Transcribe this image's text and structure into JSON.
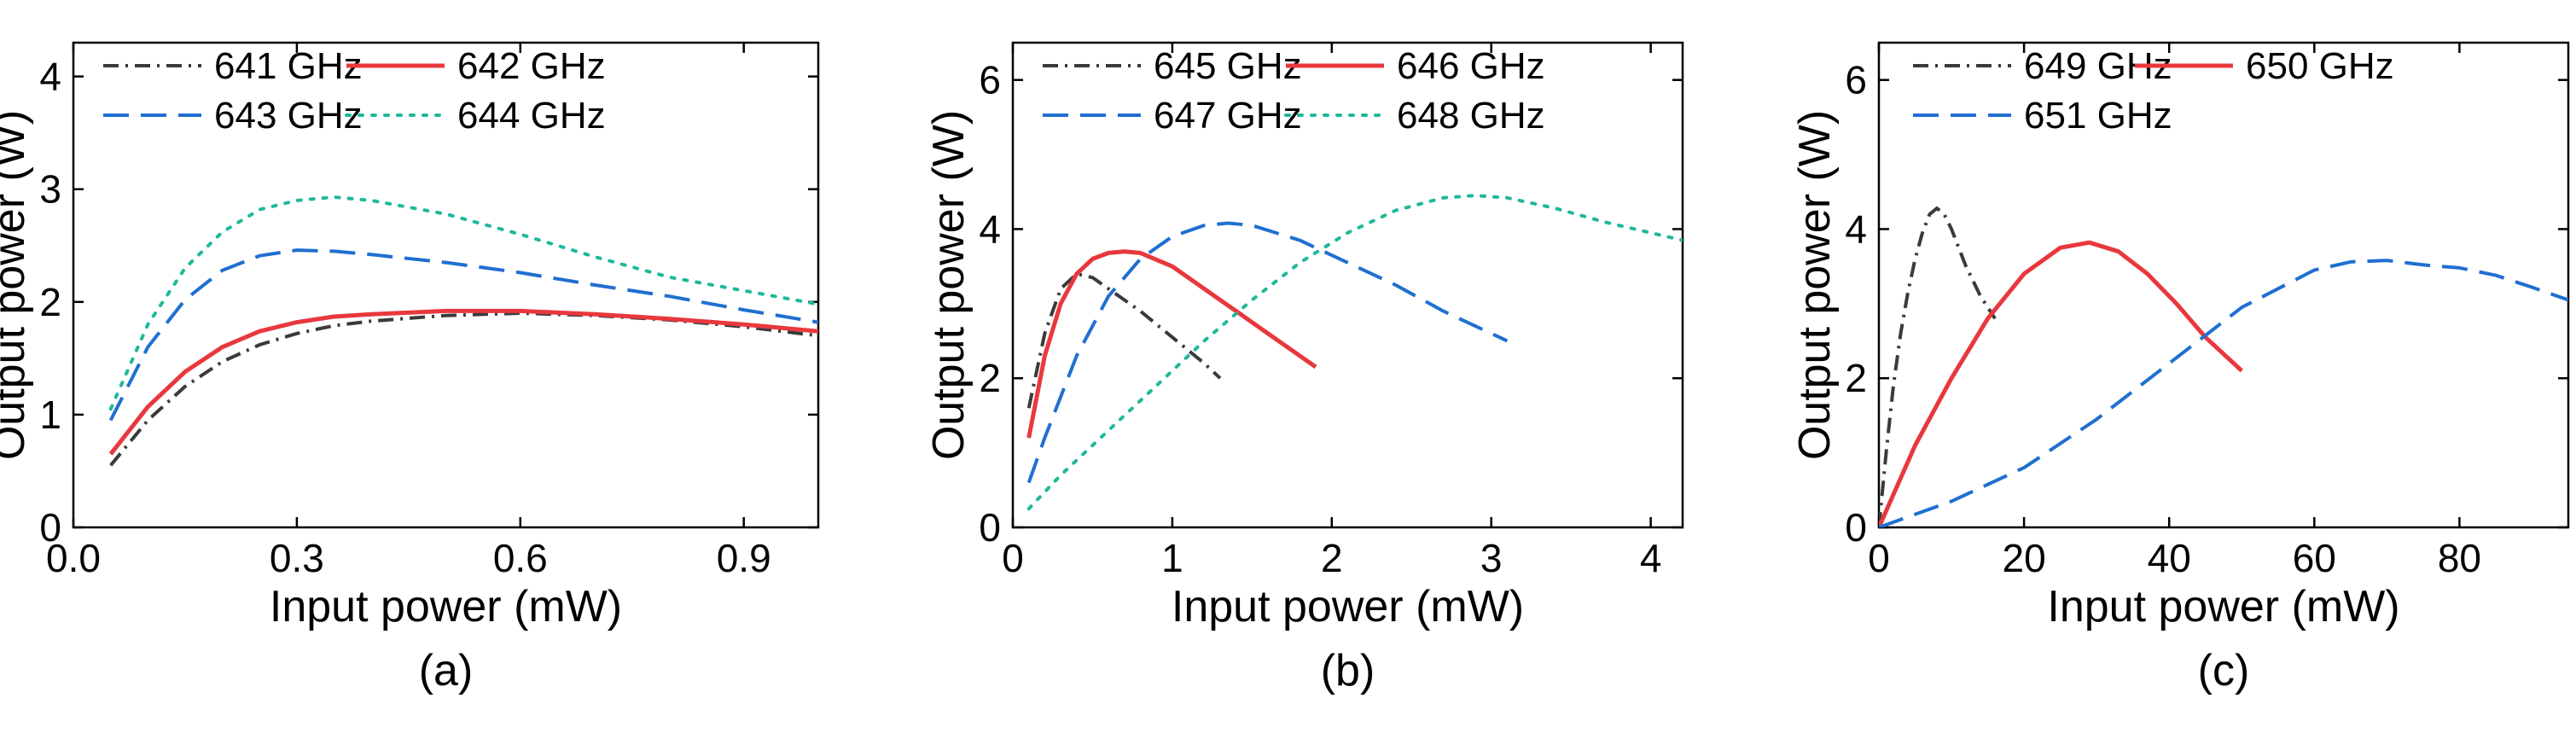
{
  "chart_data": [
    {
      "type": "line",
      "panel_label": "(a)",
      "xlabel": "Input power (mW)",
      "ylabel": "Output power (W)",
      "xlim": [
        0.0,
        1.0
      ],
      "ylim": [
        0,
        4.3
      ],
      "xticks": [
        0.0,
        0.3,
        0.6,
        0.9
      ],
      "xtick_labels": [
        "0.0",
        "0.3",
        "0.6",
        "0.9"
      ],
      "yticks": [
        0,
        1,
        2,
        3,
        4
      ],
      "ytick_labels": [
        "0",
        "1",
        "2",
        "3",
        "4"
      ],
      "legend_position": "top",
      "series": [
        {
          "name": "641 GHz",
          "style": "dashdot",
          "color": "#3a3a3a",
          "x": [
            0.05,
            0.1,
            0.15,
            0.2,
            0.25,
            0.3,
            0.35,
            0.4,
            0.5,
            0.6,
            0.7,
            0.8,
            0.9,
            1.0
          ],
          "y": [
            0.55,
            0.95,
            1.25,
            1.47,
            1.62,
            1.72,
            1.79,
            1.83,
            1.88,
            1.9,
            1.88,
            1.84,
            1.78,
            1.7
          ]
        },
        {
          "name": "642 GHz",
          "style": "solid",
          "color": "#e8383d",
          "x": [
            0.05,
            0.1,
            0.15,
            0.2,
            0.25,
            0.3,
            0.35,
            0.4,
            0.5,
            0.6,
            0.7,
            0.8,
            0.9,
            1.0
          ],
          "y": [
            0.65,
            1.07,
            1.38,
            1.6,
            1.74,
            1.82,
            1.87,
            1.89,
            1.92,
            1.92,
            1.89,
            1.85,
            1.8,
            1.74
          ]
        },
        {
          "name": "643 GHz",
          "style": "dashed",
          "color": "#1f6fd1",
          "x": [
            0.05,
            0.1,
            0.15,
            0.2,
            0.25,
            0.3,
            0.35,
            0.4,
            0.5,
            0.6,
            0.7,
            0.8,
            0.9,
            1.0
          ],
          "y": [
            0.95,
            1.6,
            2.02,
            2.28,
            2.41,
            2.46,
            2.45,
            2.42,
            2.35,
            2.26,
            2.15,
            2.05,
            1.93,
            1.82
          ]
        },
        {
          "name": "644 GHz",
          "style": "dotted",
          "color": "#1fb89a",
          "x": [
            0.05,
            0.1,
            0.15,
            0.2,
            0.25,
            0.3,
            0.35,
            0.4,
            0.5,
            0.6,
            0.7,
            0.8,
            0.9,
            1.0
          ],
          "y": [
            1.05,
            1.8,
            2.3,
            2.62,
            2.82,
            2.9,
            2.93,
            2.9,
            2.78,
            2.6,
            2.4,
            2.22,
            2.1,
            1.98
          ]
        }
      ]
    },
    {
      "type": "line",
      "panel_label": "(b)",
      "xlabel": "Input power (mW)",
      "ylabel": "Output power (W)",
      "xlim": [
        0,
        4.2
      ],
      "ylim": [
        0,
        6.5
      ],
      "xticks": [
        0,
        1,
        2,
        3,
        4
      ],
      "xtick_labels": [
        "0",
        "1",
        "2",
        "3",
        "4"
      ],
      "yticks": [
        0,
        2,
        4,
        6
      ],
      "ytick_labels": [
        "0",
        "2",
        "4",
        "6"
      ],
      "legend_position": "top",
      "series": [
        {
          "name": "645 GHz",
          "style": "dashdot",
          "color": "#3a3a3a",
          "x": [
            0.1,
            0.2,
            0.3,
            0.4,
            0.5,
            0.6,
            0.8,
            1.0,
            1.2,
            1.3
          ],
          "y": [
            1.6,
            2.6,
            3.2,
            3.4,
            3.35,
            3.2,
            2.9,
            2.55,
            2.2,
            2.0
          ]
        },
        {
          "name": "646 GHz",
          "style": "solid",
          "color": "#e8383d",
          "x": [
            0.1,
            0.2,
            0.3,
            0.4,
            0.5,
            0.6,
            0.7,
            0.8,
            1.0,
            1.2,
            1.4,
            1.6,
            1.8,
            1.9
          ],
          "y": [
            1.2,
            2.3,
            3.0,
            3.4,
            3.6,
            3.68,
            3.7,
            3.68,
            3.5,
            3.2,
            2.9,
            2.6,
            2.3,
            2.15
          ]
        },
        {
          "name": "647 GHz",
          "style": "dashed",
          "color": "#1f6fd1",
          "x": [
            0.1,
            0.2,
            0.4,
            0.6,
            0.8,
            1.0,
            1.2,
            1.35,
            1.5,
            1.8,
            2.1,
            2.4,
            2.7,
            3.0,
            3.1
          ],
          "y": [
            0.6,
            1.2,
            2.3,
            3.1,
            3.6,
            3.9,
            4.05,
            4.08,
            4.05,
            3.85,
            3.55,
            3.25,
            2.9,
            2.6,
            2.5
          ]
        },
        {
          "name": "648 GHz",
          "style": "dotted",
          "color": "#1fb89a",
          "x": [
            0.1,
            0.3,
            0.6,
            0.9,
            1.2,
            1.5,
            1.8,
            2.1,
            2.4,
            2.7,
            2.9,
            3.1,
            3.4,
            3.7,
            4.0,
            4.2
          ],
          "y": [
            0.25,
            0.7,
            1.3,
            1.9,
            2.5,
            3.05,
            3.55,
            3.95,
            4.25,
            4.42,
            4.45,
            4.42,
            4.28,
            4.1,
            3.95,
            3.85
          ]
        }
      ]
    },
    {
      "type": "line",
      "panel_label": "(c)",
      "xlabel": "Input power (mW)",
      "ylabel": "Output power (W)",
      "xlim": [
        0,
        95
      ],
      "ylim": [
        0,
        6.5
      ],
      "xticks": [
        0,
        20,
        40,
        60,
        80
      ],
      "xtick_labels": [
        "0",
        "20",
        "40",
        "60",
        "80"
      ],
      "yticks": [
        0,
        2,
        4,
        6
      ],
      "ytick_labels": [
        "0",
        "2",
        "4",
        "6"
      ],
      "legend_position": "top",
      "series": [
        {
          "name": "649 GHz",
          "style": "dashdot",
          "color": "#3a3a3a",
          "x": [
            0,
            1,
            2,
            3,
            4,
            5,
            6,
            7,
            8,
            9,
            10,
            12,
            14,
            16
          ],
          "y": [
            0,
            1.0,
            1.9,
            2.6,
            3.15,
            3.6,
            3.95,
            4.2,
            4.28,
            4.2,
            4.0,
            3.5,
            3.1,
            2.8
          ]
        },
        {
          "name": "650 GHz",
          "style": "solid",
          "color": "#e8383d",
          "x": [
            0,
            5,
            10,
            15,
            20,
            25,
            29,
            33,
            37,
            41,
            45,
            50
          ],
          "y": [
            0,
            1.1,
            2.0,
            2.8,
            3.4,
            3.75,
            3.82,
            3.7,
            3.4,
            3.0,
            2.55,
            2.1
          ]
        },
        {
          "name": "651 GHz",
          "style": "dashed",
          "color": "#1f6fd1",
          "x": [
            0,
            10,
            20,
            30,
            40,
            50,
            60,
            65,
            70,
            75,
            80,
            85,
            90,
            95
          ],
          "y": [
            0,
            0.35,
            0.8,
            1.45,
            2.2,
            2.95,
            3.45,
            3.56,
            3.58,
            3.52,
            3.48,
            3.38,
            3.22,
            3.05
          ]
        }
      ]
    }
  ]
}
